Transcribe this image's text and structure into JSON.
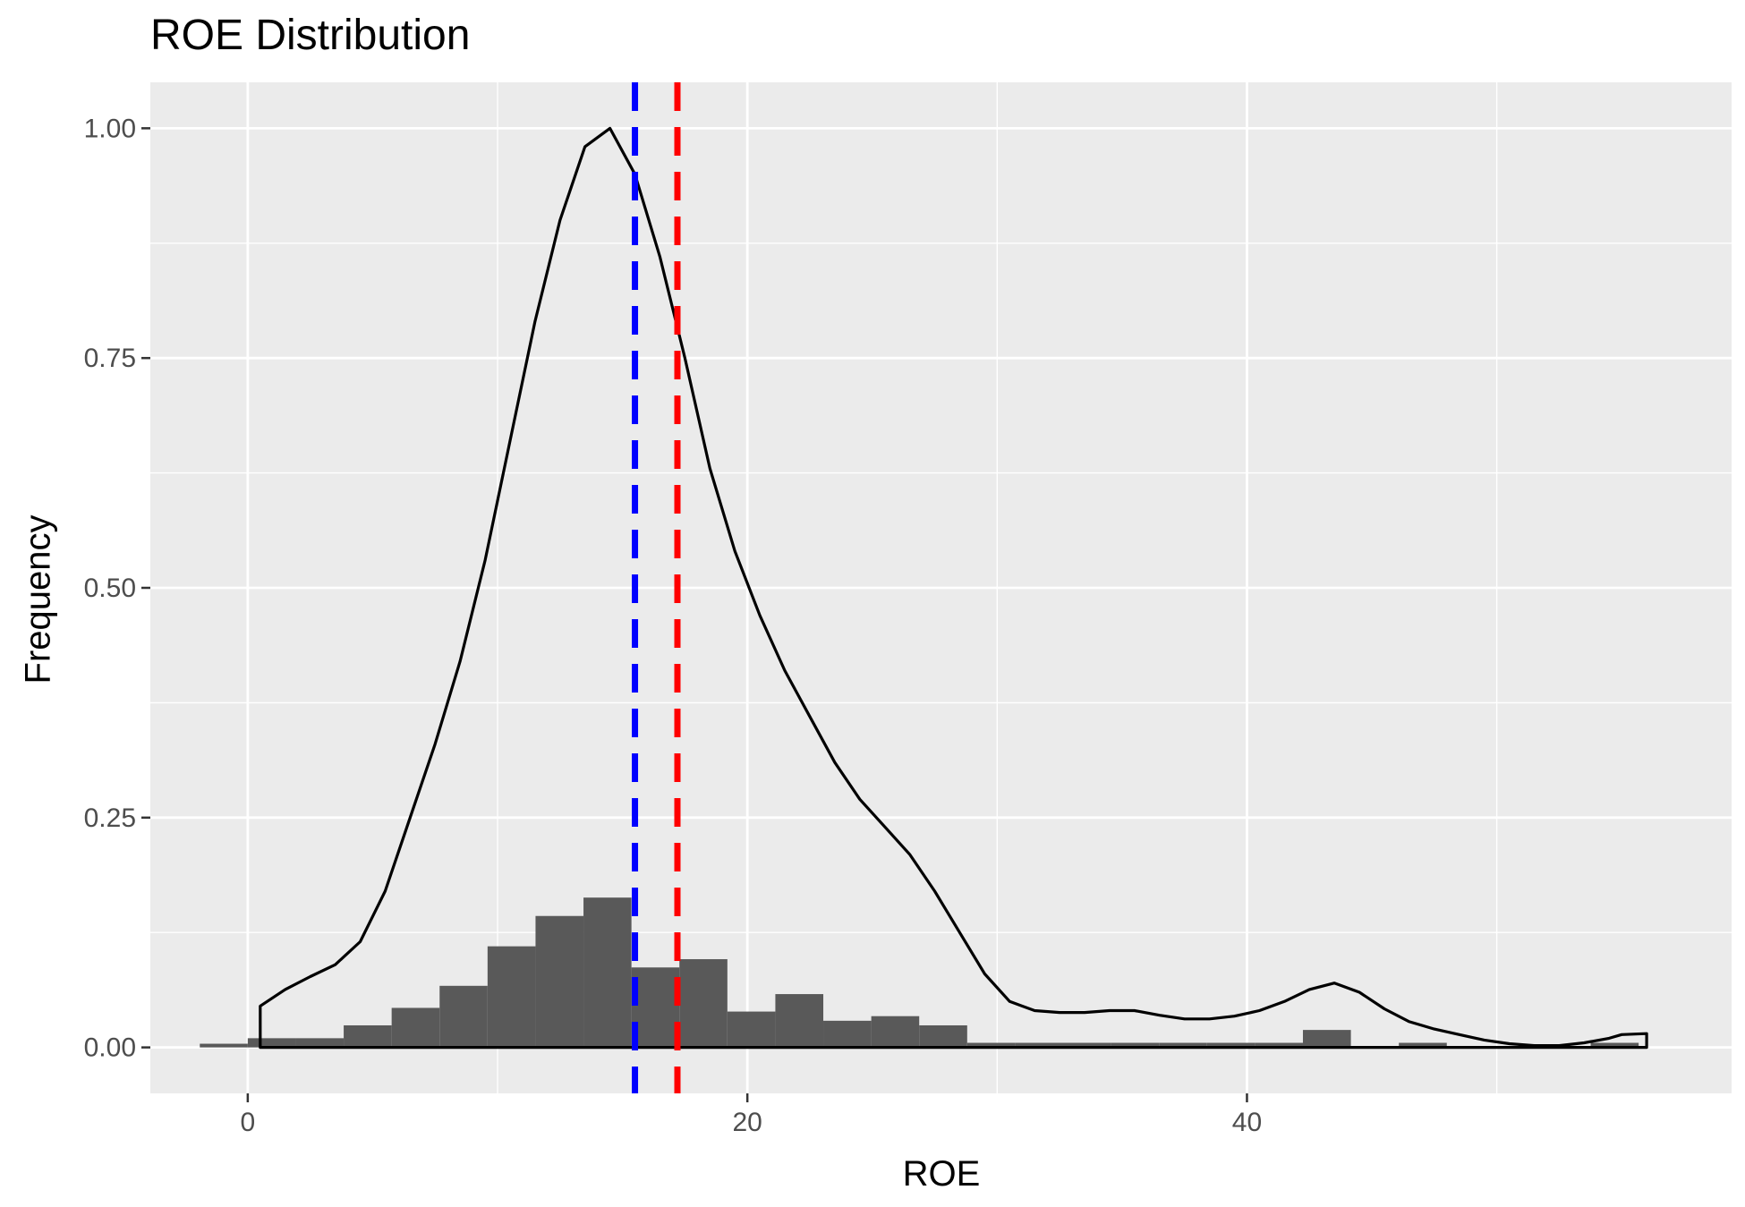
{
  "chart_data": {
    "type": "bar",
    "title": "ROE Distribution",
    "xlabel": "ROE",
    "ylabel": "Frequency",
    "xlim": [
      -3.9,
      59.4
    ],
    "ylim": [
      -0.05,
      1.05
    ],
    "x_ticks": [
      0,
      20,
      40
    ],
    "x_tick_labels": [
      "0",
      "20",
      "40"
    ],
    "y_ticks": [
      0,
      0.25,
      0.5,
      0.75,
      1.0
    ],
    "y_tick_labels": [
      "0.00",
      "0.25",
      "0.50",
      "0.75",
      "1.00"
    ],
    "grid": true,
    "background": "#ebebeb",
    "histogram": {
      "color": "#595959",
      "bin_width": 1.92,
      "bins": [
        {
          "x": -0.96,
          "value": 0.004
        },
        {
          "x": 0.96,
          "value": 0.01
        },
        {
          "x": 2.88,
          "value": 0.01
        },
        {
          "x": 4.8,
          "value": 0.024
        },
        {
          "x": 6.72,
          "value": 0.043
        },
        {
          "x": 8.64,
          "value": 0.067
        },
        {
          "x": 10.56,
          "value": 0.11
        },
        {
          "x": 12.48,
          "value": 0.143
        },
        {
          "x": 14.4,
          "value": 0.163
        },
        {
          "x": 16.32,
          "value": 0.087
        },
        {
          "x": 18.24,
          "value": 0.096
        },
        {
          "x": 20.16,
          "value": 0.039
        },
        {
          "x": 22.08,
          "value": 0.058
        },
        {
          "x": 24.0,
          "value": 0.029
        },
        {
          "x": 25.92,
          "value": 0.034
        },
        {
          "x": 27.84,
          "value": 0.024
        },
        {
          "x": 29.76,
          "value": 0.005
        },
        {
          "x": 31.68,
          "value": 0.005
        },
        {
          "x": 33.6,
          "value": 0.005
        },
        {
          "x": 35.52,
          "value": 0.005
        },
        {
          "x": 37.44,
          "value": 0.005
        },
        {
          "x": 39.36,
          "value": 0.005
        },
        {
          "x": 41.28,
          "value": 0.005
        },
        {
          "x": 43.2,
          "value": 0.019
        },
        {
          "x": 45.12,
          "value": 0.0
        },
        {
          "x": 47.04,
          "value": 0.005
        },
        {
          "x": 48.96,
          "value": 0.0
        },
        {
          "x": 50.88,
          "value": 0.0
        },
        {
          "x": 52.8,
          "value": 0.0
        },
        {
          "x": 54.72,
          "value": 0.005
        }
      ]
    },
    "density": {
      "color": "#000000",
      "points": [
        [
          0.5,
          0.045
        ],
        [
          1.5,
          0.063
        ],
        [
          2.5,
          0.077
        ],
        [
          3.5,
          0.09
        ],
        [
          4.5,
          0.115
        ],
        [
          5.5,
          0.17
        ],
        [
          6.5,
          0.25
        ],
        [
          7.5,
          0.33
        ],
        [
          8.5,
          0.42
        ],
        [
          9.5,
          0.53
        ],
        [
          10.5,
          0.66
        ],
        [
          11.5,
          0.79
        ],
        [
          12.5,
          0.9
        ],
        [
          13.5,
          0.98
        ],
        [
          14.5,
          1.0
        ],
        [
          15.5,
          0.95
        ],
        [
          16.5,
          0.86
        ],
        [
          17.5,
          0.75
        ],
        [
          18.5,
          0.63
        ],
        [
          19.5,
          0.54
        ],
        [
          20.5,
          0.47
        ],
        [
          21.5,
          0.41
        ],
        [
          22.5,
          0.36
        ],
        [
          23.5,
          0.31
        ],
        [
          24.5,
          0.27
        ],
        [
          25.5,
          0.24
        ],
        [
          26.5,
          0.21
        ],
        [
          27.5,
          0.17
        ],
        [
          28.5,
          0.125
        ],
        [
          29.5,
          0.08
        ],
        [
          30.5,
          0.05
        ],
        [
          31.5,
          0.04
        ],
        [
          32.5,
          0.038
        ],
        [
          33.5,
          0.038
        ],
        [
          34.5,
          0.04
        ],
        [
          35.5,
          0.04
        ],
        [
          36.5,
          0.035
        ],
        [
          37.5,
          0.031
        ],
        [
          38.5,
          0.031
        ],
        [
          39.5,
          0.034
        ],
        [
          40.5,
          0.04
        ],
        [
          41.5,
          0.05
        ],
        [
          42.5,
          0.063
        ],
        [
          43.5,
          0.07
        ],
        [
          44.5,
          0.06
        ],
        [
          45.5,
          0.042
        ],
        [
          46.5,
          0.028
        ],
        [
          47.5,
          0.02
        ],
        [
          48.5,
          0.014
        ],
        [
          49.5,
          0.008
        ],
        [
          50.5,
          0.004
        ],
        [
          51.5,
          0.002
        ],
        [
          52.5,
          0.002
        ],
        [
          53.5,
          0.005
        ],
        [
          54.5,
          0.01
        ],
        [
          55.0,
          0.014
        ],
        [
          56.0,
          0.015
        ]
      ]
    },
    "reference_lines": [
      {
        "x": 15.5,
        "color": "#0000ff",
        "style": "dashed"
      },
      {
        "x": 17.2,
        "color": "#ff0000",
        "style": "dashed"
      }
    ]
  }
}
